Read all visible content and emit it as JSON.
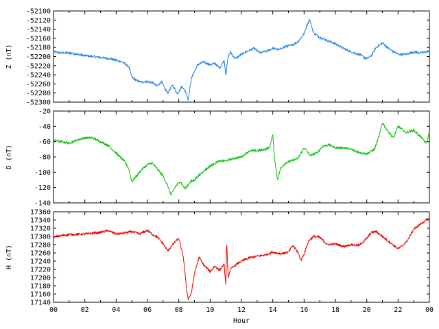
{
  "chart_data": [
    {
      "type": "line",
      "ylabel": "Z (nT)",
      "color": "#1e7fe6",
      "ylim": [
        -52300,
        -52100
      ],
      "yticks": [
        "-52100",
        "-52120",
        "-52140",
        "-52160",
        "-52180",
        "-52200",
        "-52220",
        "-52240",
        "-52260",
        "-52280",
        "-52300"
      ],
      "x": [
        0,
        0.5,
        1,
        1.5,
        2,
        2.5,
        3,
        3.5,
        4,
        4.4,
        4.8,
        5,
        5.3,
        5.6,
        6,
        6.3,
        6.6,
        6.9,
        7.1,
        7.3,
        7.6,
        7.9,
        8.2,
        8.45,
        8.6,
        8.8,
        9.2,
        9.6,
        10,
        10.3,
        10.6,
        10.9,
        11.0,
        11.15,
        11.3,
        11.6,
        12,
        12.4,
        12.8,
        13.2,
        13.6,
        14,
        14.4,
        14.8,
        15.2,
        15.6,
        16,
        16.2,
        16.35,
        16.6,
        17,
        17.5,
        18,
        18.5,
        19,
        19.5,
        20,
        20.3,
        20.6,
        21,
        21.5,
        22,
        22.5,
        23,
        23.5,
        24
      ],
      "values": [
        -52190,
        -52192,
        -52192,
        -52195,
        -52198,
        -52200,
        -52202,
        -52204,
        -52208,
        -52212,
        -52222,
        -52245,
        -52253,
        -52256,
        -52255,
        -52257,
        -52265,
        -52255,
        -52270,
        -52280,
        -52262,
        -52282,
        -52265,
        -52278,
        -52295,
        -52248,
        -52218,
        -52212,
        -52218,
        -52215,
        -52225,
        -52208,
        -52240,
        -52200,
        -52190,
        -52205,
        -52195,
        -52188,
        -52182,
        -52192,
        -52188,
        -52182,
        -52185,
        -52178,
        -52175,
        -52168,
        -52150,
        -52130,
        -52118,
        -52148,
        -52158,
        -52165,
        -52172,
        -52182,
        -52190,
        -52195,
        -52205,
        -52198,
        -52180,
        -52170,
        -52185,
        -52195,
        -52195,
        -52190,
        -52192,
        -52188
      ]
    },
    {
      "type": "line",
      "ylabel": "D (nT)",
      "color": "#00c000",
      "ylim": [
        -140,
        -20
      ],
      "yticks": [
        "-20",
        "-40",
        "-60",
        "-80",
        "-100",
        "-120",
        "-140"
      ],
      "x": [
        0,
        0.5,
        1,
        1.5,
        2,
        2.5,
        3,
        3.5,
        4,
        4.5,
        4.8,
        5,
        5.3,
        5.6,
        6,
        6.3,
        6.6,
        7,
        7.3,
        7.5,
        7.8,
        8.1,
        8.4,
        8.7,
        9,
        9.5,
        10,
        10.5,
        11,
        11.5,
        12,
        12.5,
        13,
        13.5,
        13.8,
        14,
        14.1,
        14.3,
        14.5,
        14.8,
        15.2,
        15.6,
        16,
        16.4,
        16.8,
        17.2,
        17.6,
        18,
        18.5,
        19,
        19.5,
        20,
        20.5,
        20.8,
        21,
        21.3,
        21.7,
        22,
        22.5,
        23,
        23.5,
        23.8,
        24
      ],
      "values": [
        -58,
        -60,
        -62,
        -58,
        -55,
        -55,
        -60,
        -65,
        -75,
        -85,
        -95,
        -112,
        -105,
        -97,
        -90,
        -88,
        -95,
        -105,
        -118,
        -130,
        -118,
        -112,
        -122,
        -113,
        -110,
        -100,
        -92,
        -86,
        -85,
        -82,
        -80,
        -72,
        -72,
        -70,
        -68,
        -50,
        -78,
        -110,
        -95,
        -88,
        -85,
        -82,
        -68,
        -78,
        -75,
        -66,
        -64,
        -68,
        -68,
        -70,
        -74,
        -76,
        -70,
        -52,
        -35,
        -45,
        -55,
        -40,
        -48,
        -45,
        -55,
        -62,
        -48
      ]
    },
    {
      "type": "line",
      "ylabel": "H (nT)",
      "color": "#e60000",
      "xlabel": "Hour",
      "ylim": [
        17140,
        17360
      ],
      "yticks": [
        "17360",
        "17340",
        "17320",
        "17300",
        "17280",
        "17260",
        "17240",
        "17220",
        "17200",
        "17180",
        "17160",
        "17140"
      ],
      "x": [
        0,
        0.5,
        1,
        1.5,
        2,
        2.5,
        3,
        3.5,
        4,
        4.5,
        5,
        5.5,
        6,
        6.3,
        6.6,
        7,
        7.3,
        7.6,
        8,
        8.3,
        8.5,
        8.6,
        8.8,
        9,
        9.3,
        9.6,
        10,
        10.3,
        10.6,
        10.9,
        11,
        11.05,
        11.15,
        11.3,
        11.6,
        12,
        12.5,
        13,
        13.5,
        14,
        14.5,
        15,
        15.3,
        15.6,
        15.8,
        16,
        16.3,
        16.6,
        17,
        17.5,
        18,
        18.5,
        19,
        19.5,
        20,
        20.3,
        20.6,
        21,
        21.5,
        22,
        22.3,
        22.6,
        23,
        23.5,
        24
      ],
      "values": [
        17298,
        17302,
        17305,
        17305,
        17306,
        17308,
        17310,
        17314,
        17306,
        17308,
        17312,
        17306,
        17315,
        17305,
        17300,
        17282,
        17265,
        17280,
        17296,
        17248,
        17170,
        17148,
        17162,
        17210,
        17250,
        17230,
        17215,
        17228,
        17218,
        17232,
        17180,
        17290,
        17200,
        17220,
        17230,
        17240,
        17248,
        17252,
        17255,
        17262,
        17258,
        17262,
        17278,
        17262,
        17242,
        17258,
        17290,
        17300,
        17298,
        17280,
        17282,
        17276,
        17280,
        17278,
        17295,
        17310,
        17312,
        17300,
        17285,
        17270,
        17278,
        17290,
        17318,
        17332,
        17345
      ]
    }
  ],
  "xaxis": {
    "label": "Hour",
    "xlim": [
      0,
      24
    ],
    "ticks": [
      "00",
      "02",
      "04",
      "06",
      "08",
      "10",
      "12",
      "14",
      "16",
      "18",
      "20",
      "22",
      "00"
    ]
  }
}
